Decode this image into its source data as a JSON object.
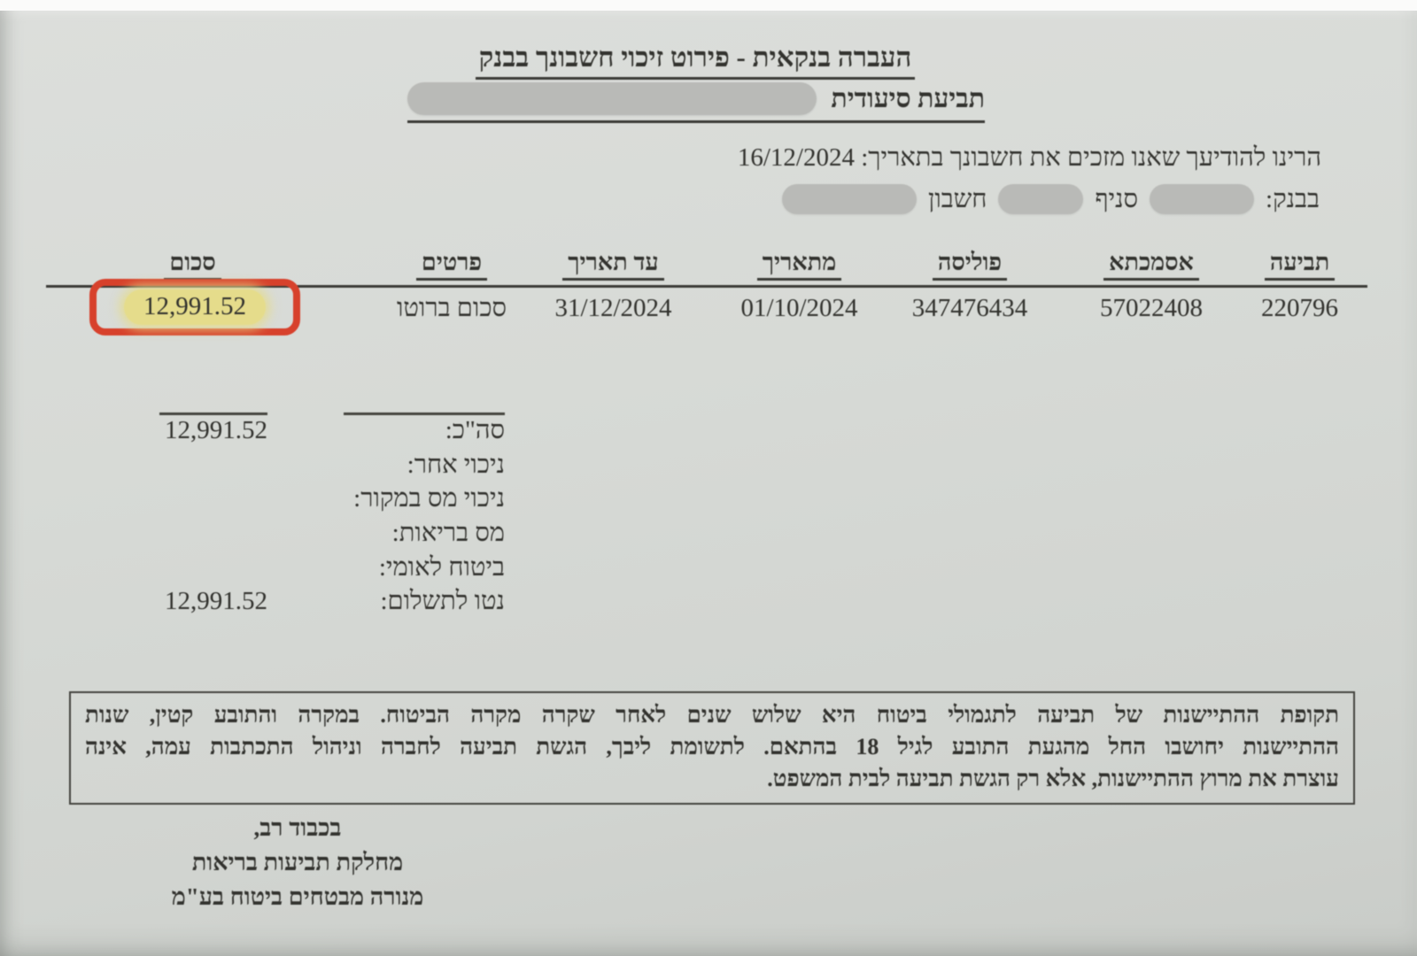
{
  "document": {
    "title": "העברה בנקאית - פירוט זיכוי חשבונך בבנק",
    "claim_type_label": "תביעת סיעודית",
    "notice_line": "הרינו להודיעך שאנו מזכים את חשבונך בתאריך: 16/12/2024",
    "credit_date": "16/12/2024",
    "bank_line": {
      "bank_label": "בבנק:",
      "branch_label": "סניף",
      "account_label": "חשבון"
    },
    "table": {
      "headers": {
        "claim": "תביעה",
        "reference": "אסמכתא",
        "policy": "פוליסה",
        "from_date": "מתאריך",
        "to_date": "עד תאריך",
        "details": "פרטים",
        "amount": "סכום"
      },
      "row": {
        "claim": "220796",
        "reference": "57022408",
        "policy": "347476434",
        "from_date": "01/10/2024",
        "to_date": "31/12/2024",
        "details": "סכום ברוטו",
        "amount": "12,991.52"
      }
    },
    "totals": [
      {
        "label": "סה\"כ:",
        "value": "12,991.52"
      },
      {
        "label": "ניכוי אחר:",
        "value": ""
      },
      {
        "label": "ניכוי מס במקור:",
        "value": ""
      },
      {
        "label": "מס בריאות:",
        "value": ""
      },
      {
        "label": "ביטוח לאומי:",
        "value": ""
      },
      {
        "label": "נטו לתשלום:",
        "value": "12,991.52"
      }
    ],
    "legal_notice": {
      "lines": [
        "תקופת ההתיישנות של תביעה לתגמולי ביטוח היא שלוש שנים לאחר שקרה מקרה הביטוח. במקרה והתובע קטין, שנות",
        "ההתיישנות יחושבו החל מהגעת התובע לגיל 18 בהתאם. לתשומת ליבך, הגשת תביעה לחברה וניהול התכתבות עמה, אינה",
        "עוצרת את מרוץ ההתיישנות, אלא רק הגשת תביעה לבית המשפט."
      ]
    },
    "signature": {
      "closing": "בכבוד רב,",
      "department": "מחלקת תביעות בריאות",
      "company": "מנורה מבטחים ביטוח בע\"מ"
    },
    "annotations": {
      "highlight_color": "#e5dc8b",
      "box_color": "#d7412c",
      "redaction_color": "#b9bab7",
      "paper_color": "#d6d9d5",
      "ink_color": "#32322e"
    }
  }
}
